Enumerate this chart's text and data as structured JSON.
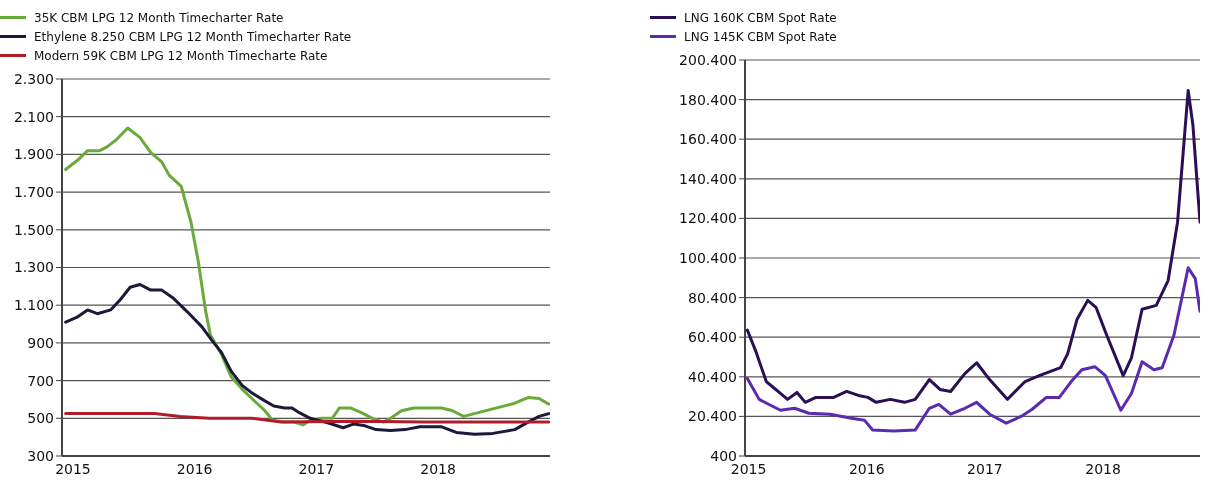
{
  "chart_data": [
    {
      "type": "line",
      "xlim": [
        2014.91,
        2018.92
      ],
      "xticks": [
        2015,
        2016,
        2017,
        2018
      ],
      "ylim": [
        300,
        2300
      ],
      "yticks": [
        {
          "value": 300,
          "label": "300"
        },
        {
          "value": 500,
          "label": "500"
        },
        {
          "value": 700,
          "label": "700"
        },
        {
          "value": 900,
          "label": "900"
        },
        {
          "value": 1100,
          "label": "1.100"
        },
        {
          "value": 1300,
          "label": "1.300"
        },
        {
          "value": 1500,
          "label": "1.500"
        },
        {
          "value": 1700,
          "label": "1.700"
        },
        {
          "value": 1900,
          "label": "1.900"
        },
        {
          "value": 2100,
          "label": "2.100"
        },
        {
          "value": 2300,
          "label": "2.300"
        }
      ],
      "grid": "y",
      "legend": "top",
      "marker": "none",
      "line_style": "solid",
      "series": [
        {
          "name": "35K CBM LPG 12 Month Timecharter Rate",
          "color": "#6aaa3a",
          "x": [
            2014.94,
            2015.04,
            2015.12,
            2015.22,
            2015.28,
            2015.36,
            2015.45,
            2015.55,
            2015.64,
            2015.73,
            2015.79,
            2015.89,
            2015.97,
            2016.03,
            2016.09,
            2016.13,
            2016.22,
            2016.3,
            2016.39,
            2016.47,
            2016.57,
            2016.64,
            2016.74,
            2016.82,
            2016.89,
            2016.95,
            2017.04,
            2017.13,
            2017.19,
            2017.28,
            2017.37,
            2017.46,
            2017.55,
            2017.61,
            2017.7,
            2017.8,
            2018.03,
            2018.12,
            2018.21,
            2018.33,
            2018.45,
            2018.63,
            2018.74,
            2018.83,
            2018.91
          ],
          "values": [
            1820,
            1870,
            1920,
            1920,
            1940,
            1980,
            2040,
            1990,
            1910,
            1860,
            1790,
            1730,
            1540,
            1330,
            1070,
            940,
            840,
            720,
            655,
            605,
            545,
            490,
            480,
            480,
            465,
            490,
            500,
            500,
            555,
            555,
            530,
            500,
            480,
            500,
            540,
            555,
            555,
            540,
            510,
            530,
            550,
            580,
            610,
            605,
            575
          ]
        },
        {
          "name": "Ethylene 8.250 CBM LPG 12 Month Timecharter Rate",
          "color": "#1c1a3c",
          "x": [
            2014.94,
            2015.03,
            2015.12,
            2015.2,
            2015.31,
            2015.39,
            2015.47,
            2015.55,
            2015.64,
            2015.73,
            2015.82,
            2015.94,
            2016.06,
            2016.14,
            2016.22,
            2016.3,
            2016.39,
            2016.47,
            2016.57,
            2016.65,
            2016.74,
            2016.8,
            2016.86,
            2016.95,
            2017.1,
            2017.22,
            2017.31,
            2017.4,
            2017.49,
            2017.61,
            2017.73,
            2017.85,
            2018.03,
            2018.15,
            2018.3,
            2018.45,
            2018.63,
            2018.74,
            2018.83,
            2018.91
          ],
          "values": [
            1010,
            1035,
            1075,
            1055,
            1075,
            1130,
            1195,
            1210,
            1180,
            1180,
            1140,
            1065,
            985,
            915,
            850,
            750,
            675,
            635,
            595,
            565,
            555,
            555,
            530,
            500,
            475,
            450,
            470,
            460,
            440,
            435,
            440,
            455,
            455,
            425,
            415,
            420,
            440,
            480,
            510,
            525
          ]
        },
        {
          "name": "Modern 59K CBM LPG 12 Month Timecharte Rate",
          "color": "#b01c2a",
          "x": [
            2014.94,
            2015.67,
            2015.88,
            2016.12,
            2016.47,
            2016.71,
            2017.31,
            2017.91,
            2018.91
          ],
          "values": [
            525,
            525,
            510,
            500,
            500,
            480,
            485,
            480,
            480
          ]
        }
      ]
    },
    {
      "type": "line",
      "xlim": [
        2014.97,
        2018.82
      ],
      "xticks": [
        2015,
        2016,
        2017,
        2018
      ],
      "ylim": [
        400,
        200400
      ],
      "yticks": [
        {
          "value": 400,
          "label": "400"
        },
        {
          "value": 20400,
          "label": "20.400"
        },
        {
          "value": 40400,
          "label": "40.400"
        },
        {
          "value": 60400,
          "label": "60.400"
        },
        {
          "value": 80400,
          "label": "80.400"
        },
        {
          "value": 100400,
          "label": "100.400"
        },
        {
          "value": 120400,
          "label": "120.400"
        },
        {
          "value": 140400,
          "label": "140.400"
        },
        {
          "value": 160400,
          "label": "160.400"
        },
        {
          "value": 180400,
          "label": "180.400"
        },
        {
          "value": 200400,
          "label": "200.400"
        }
      ],
      "grid": "y",
      "legend": "top",
      "marker": "none",
      "line_style": "solid",
      "series": [
        {
          "name": "LNG 160K CBM Spot Rate",
          "color": "#2a0f55",
          "x": [
            2014.99,
            2015.06,
            2015.15,
            2015.21,
            2015.27,
            2015.33,
            2015.41,
            2015.48,
            2015.57,
            2015.72,
            2015.83,
            2015.93,
            2016.01,
            2016.08,
            2016.2,
            2016.32,
            2016.41,
            2016.53,
            2016.62,
            2016.71,
            2016.83,
            2016.93,
            2017.04,
            2017.19,
            2017.34,
            2017.46,
            2017.55,
            2017.64,
            2017.7,
            2017.78,
            2017.87,
            2017.94,
            2018.03,
            2018.17,
            2018.24,
            2018.33,
            2018.45,
            2018.55,
            2018.63,
            2018.72,
            2018.76,
            2018.82
          ],
          "values": [
            64000,
            53500,
            38000,
            35000,
            32000,
            29000,
            32500,
            27500,
            30000,
            30000,
            33000,
            31000,
            30000,
            27500,
            29000,
            27500,
            29000,
            39000,
            34000,
            33000,
            42000,
            47500,
            39000,
            29000,
            38000,
            41000,
            43000,
            45000,
            52000,
            69500,
            79000,
            75500,
            61500,
            41000,
            50000,
            74500,
            76500,
            89000,
            118500,
            185000,
            167500,
            118500
          ]
        },
        {
          "name": "LNG 145K CBM Spot Rate",
          "color": "#5a2ab0",
          "x": [
            2014.99,
            2015.09,
            2015.27,
            2015.39,
            2015.51,
            2015.69,
            2015.87,
            2015.98,
            2016.05,
            2016.23,
            2016.41,
            2016.53,
            2016.61,
            2016.71,
            2016.83,
            2016.93,
            2017.04,
            2017.18,
            2017.31,
            2017.4,
            2017.52,
            2017.63,
            2017.73,
            2017.82,
            2017.93,
            2018.02,
            2018.15,
            2018.24,
            2018.33,
            2018.43,
            2018.5,
            2018.6,
            2018.72,
            2018.78,
            2018.82
          ],
          "values": [
            39500,
            29000,
            23500,
            24500,
            22000,
            21500,
            19500,
            18500,
            13500,
            13000,
            13500,
            24500,
            26500,
            21500,
            24500,
            27500,
            21500,
            17000,
            20500,
            24000,
            30000,
            30000,
            38000,
            44000,
            45500,
            41000,
            23500,
            32000,
            48000,
            44000,
            45000,
            61500,
            95500,
            90000,
            73500
          ]
        }
      ]
    }
  ]
}
